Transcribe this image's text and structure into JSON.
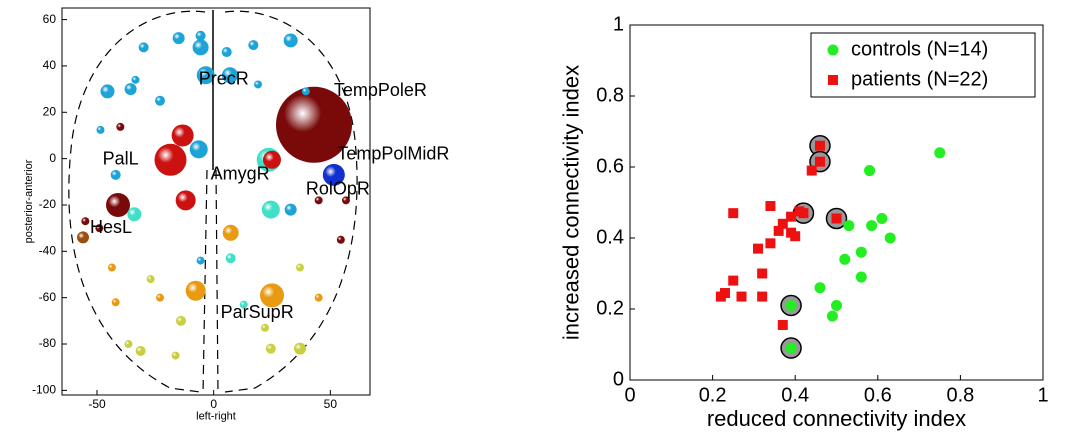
{
  "chart_data": [
    {
      "type": "bubble",
      "xlabel": "left-right",
      "ylabel": "posterior-anterior",
      "xlim": [
        -65,
        67
      ],
      "ylim": [
        -102,
        65
      ],
      "xticks": [
        -50,
        0,
        50
      ],
      "yticks": [
        -100,
        -80,
        -60,
        -40,
        -20,
        0,
        20,
        40,
        60
      ],
      "x": [
        -30,
        -15,
        -5.6,
        -5.6,
        5.6,
        17,
        33,
        -3.4,
        7,
        -45.5,
        -35.6,
        -33.5,
        -23,
        19,
        39.5,
        43,
        -13.3,
        -18.5,
        -6.4,
        23.6,
        25,
        51.5,
        -40,
        -48.5,
        -42,
        -41,
        -12,
        -34,
        24.5,
        33,
        45,
        56.7,
        -55,
        -56,
        -49,
        7.3,
        7.3,
        -5.6,
        54.5,
        -7.7,
        25,
        -23,
        -42,
        45,
        -43.6,
        -27,
        37,
        -14,
        -36.5,
        -31.3,
        -16.3,
        22,
        24.5,
        37,
        12.9
      ],
      "y": [
        48,
        52,
        53,
        48,
        46,
        49,
        51,
        36,
        36,
        29,
        30,
        34,
        25,
        32,
        29,
        14.6,
        10,
        -0.5,
        4,
        -0.5,
        -0.5,
        -7,
        13.7,
        12.4,
        -7,
        -20,
        -18,
        -24,
        -22,
        -22,
        -18,
        -18,
        -27,
        -34,
        -30,
        -32,
        -43,
        -44,
        -35,
        -57,
        -59,
        -60,
        -62,
        -60,
        -47,
        -52,
        -47,
        -70,
        -80,
        -83,
        -85,
        -73,
        -82,
        -82,
        -63
      ],
      "sizes": [
        5,
        6,
        5,
        8,
        5,
        5,
        7,
        9,
        8,
        7,
        6,
        4,
        5,
        4,
        4,
        38,
        11,
        16,
        9,
        12,
        9,
        11,
        4,
        4,
        5,
        12,
        10,
        7,
        9,
        6,
        4,
        4,
        4,
        6,
        4,
        8,
        5,
        4,
        4,
        10,
        12,
        4,
        4,
        4,
        4,
        4,
        4,
        5,
        4,
        5,
        4,
        4,
        5,
        6,
        4
      ],
      "colors": [
        "#1ca3d8",
        "#1ca3d8",
        "#1ca3d8",
        "#1ca3d8",
        "#1ca3d8",
        "#1ca3d8",
        "#1ca3d8",
        "#1ca3d8",
        "#1ca3d8",
        "#1ca3d8",
        "#1ca3d8",
        "#1ca3d8",
        "#1ca3d8",
        "#1ca3d8",
        "#1ca3d8",
        "#7a0a0a",
        "#cc1111",
        "#cc1111",
        "#1ca3d8",
        "#40e0c8",
        "#cc1111",
        "#1030d0",
        "#7a0a0a",
        "#1ca3d8",
        "#1ca3d8",
        "#7a0a0a",
        "#cc1111",
        "#40e0c8",
        "#40e0c8",
        "#1ca3d8",
        "#7a0a0a",
        "#7a0a0a",
        "#7a0a0a",
        "#9a5010",
        "#7a0a0a",
        "#e89a10",
        "#40e0c8",
        "#1ca3d8",
        "#7a0a0a",
        "#e89a10",
        "#e89a10",
        "#e89a10",
        "#e89a10",
        "#e89a10",
        "#e89a10",
        "#c8d040",
        "#c8d040",
        "#c8d040",
        "#c8d040",
        "#c8d040",
        "#c8d040",
        "#c8d040",
        "#c8d040",
        "#c8d040",
        "#40e0c8"
      ],
      "annotations": [
        {
          "text": "PrecR",
          "x": -6.4,
          "y": 34
        },
        {
          "text": "TempPoleR",
          "x": 51.5,
          "y": 29
        },
        {
          "text": "PalL",
          "x": -47.6,
          "y": -0.5
        },
        {
          "text": "TempPolMidR",
          "x": 53,
          "y": 1.6
        },
        {
          "text": "AmygR",
          "x": -1.3,
          "y": -7
        },
        {
          "text": "RolOpR",
          "x": 39.5,
          "y": -13.5
        },
        {
          "text": "HesL",
          "x": -53,
          "y": -30
        },
        {
          "text": "ParSupR",
          "x": 3,
          "y": -66.7
        }
      ]
    },
    {
      "type": "scatter",
      "xlabel": "reduced connectivity index",
      "ylabel": "increased connectivity index",
      "xlim": [
        0,
        1
      ],
      "ylim": [
        0,
        1
      ],
      "xticks": [
        0,
        0.2,
        0.4,
        0.6,
        0.8,
        1
      ],
      "yticks": [
        0,
        0.2,
        0.4,
        0.6,
        0.8,
        1
      ],
      "legend": "upper right",
      "series": [
        {
          "name": "controls (N=14)",
          "color": "#22ee22",
          "marker": "circle",
          "x": [
            0.75,
            0.58,
            0.61,
            0.585,
            0.63,
            0.53,
            0.56,
            0.52,
            0.56,
            0.46,
            0.5,
            0.49,
            0.39,
            0.39
          ],
          "values": [
            0.64,
            0.59,
            0.455,
            0.435,
            0.4,
            0.435,
            0.36,
            0.34,
            0.29,
            0.26,
            0.21,
            0.18,
            0.21,
            0.09
          ]
        },
        {
          "name": "patients (N=22)",
          "color": "#ee1111",
          "marker": "square",
          "x": [
            0.46,
            0.46,
            0.44,
            0.42,
            0.41,
            0.5,
            0.25,
            0.34,
            0.37,
            0.36,
            0.39,
            0.39,
            0.4,
            0.34,
            0.31,
            0.32,
            0.25,
            0.23,
            0.22,
            0.27,
            0.32,
            0.37
          ],
          "values": [
            0.66,
            0.615,
            0.59,
            0.47,
            0.475,
            0.455,
            0.47,
            0.49,
            0.44,
            0.42,
            0.46,
            0.415,
            0.405,
            0.385,
            0.37,
            0.3,
            0.28,
            0.245,
            0.235,
            0.235,
            0.235,
            0.155
          ]
        }
      ],
      "highlights": {
        "color": "#999999",
        "x": [
          0.46,
          0.46,
          0.42,
          0.5,
          0.39,
          0.39
        ],
        "values": [
          0.66,
          0.615,
          0.47,
          0.455,
          0.21,
          0.09
        ]
      }
    }
  ]
}
